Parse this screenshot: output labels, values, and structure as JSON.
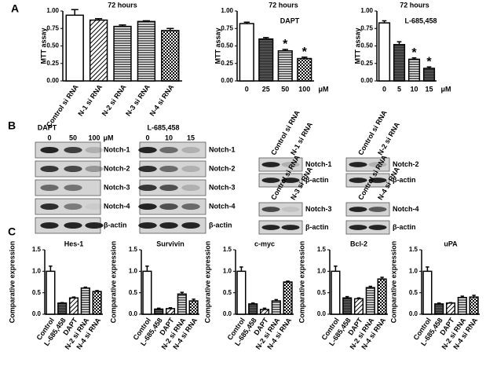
{
  "panels": [
    "A",
    "B",
    "C"
  ],
  "chart_data": [
    {
      "type": "bar",
      "title": "72 hours",
      "ylabel": "MTT assay",
      "categories": [
        "Control si RNA",
        "N-1 si RNA",
        "N-2 si RNA",
        "N-3 si RNA",
        "N-4 si RNA"
      ],
      "values": [
        0.94,
        0.87,
        0.78,
        0.85,
        0.72
      ],
      "errors": [
        0.08,
        0.02,
        0.02,
        0.01,
        0.03
      ],
      "color": "#000000",
      "fills": [
        "white",
        "diagonal",
        "hlines",
        "hlines",
        "checker"
      ],
      "ylim": [
        0,
        1
      ],
      "yticks": [
        {
          "value": 0,
          "label": "0.00"
        },
        {
          "value": 0.25,
          "label": "0.25"
        },
        {
          "value": 0.5,
          "label": "0.50"
        },
        {
          "value": 0.75,
          "label": "0.75"
        },
        {
          "value": 1,
          "label": "1.00"
        }
      ]
    },
    {
      "type": "bar",
      "title": "72 hours",
      "subtitle": "DAPT",
      "ylabel": "MTT assay",
      "xlabel": "μM",
      "categories": [
        "0",
        "25",
        "50",
        "100"
      ],
      "values": [
        0.82,
        0.6,
        0.43,
        0.32
      ],
      "errors": [
        0.02,
        0.02,
        0.02,
        0.02
      ],
      "color": "#000000",
      "fills": [
        "white",
        "dense",
        "hlines",
        "checker"
      ],
      "annotations": [
        {
          "category": "50",
          "text": "*"
        },
        {
          "category": "100",
          "text": "*"
        }
      ],
      "ylim": [
        0,
        1
      ],
      "yticks": [
        {
          "value": 0,
          "label": "0.00"
        },
        {
          "value": 0.25,
          "label": "0.25"
        },
        {
          "value": 0.5,
          "label": "0.50"
        },
        {
          "value": 0.75,
          "label": "0.75"
        },
        {
          "value": 1,
          "label": "1.00"
        }
      ]
    },
    {
      "type": "bar",
      "title": "72 hours",
      "subtitle": "L-685,458",
      "ylabel": "MTT assay",
      "xlabel": "μM",
      "categories": [
        "0",
        "5",
        "10",
        "15"
      ],
      "values": [
        0.83,
        0.52,
        0.31,
        0.18
      ],
      "errors": [
        0.03,
        0.04,
        0.02,
        0.02
      ],
      "color": "#000000",
      "fills": [
        "white",
        "dense",
        "hlines",
        "dense"
      ],
      "annotations": [
        {
          "category": "10",
          "text": "*"
        },
        {
          "category": "15",
          "text": "*"
        }
      ],
      "ylim": [
        0,
        1
      ],
      "yticks": [
        {
          "value": 0,
          "label": "0.00"
        },
        {
          "value": 0.25,
          "label": "0.25"
        },
        {
          "value": 0.5,
          "label": "0.50"
        },
        {
          "value": 0.75,
          "label": "0.75"
        },
        {
          "value": 1,
          "label": "1.00"
        }
      ]
    },
    {
      "type": "bar",
      "title": "Hes-1",
      "ylabel": "Comparative expression",
      "categories": [
        "Control",
        "L-685,458",
        "DAPT",
        "N-2 si RNA",
        "N-4 si RNA"
      ],
      "values": [
        1.0,
        0.26,
        0.38,
        0.61,
        0.53
      ],
      "errors": [
        0.12,
        0.01,
        0.02,
        0.02,
        0.02
      ],
      "color": "#000000",
      "fills": [
        "white",
        "dense",
        "diagonal",
        "hlines",
        "checker"
      ],
      "ylim": [
        0,
        1.5
      ],
      "yticks": [
        {
          "value": 0,
          "label": "0.0"
        },
        0.5,
        {
          "value": 1,
          "label": "1.0"
        },
        1.5
      ]
    },
    {
      "type": "bar",
      "title": "Survivin",
      "ylabel": "Comparative expression",
      "categories": [
        "Control",
        "L-685,458",
        "DAPT",
        "N-2 si RNA",
        "N-4 si RNA"
      ],
      "values": [
        1.0,
        0.12,
        0.13,
        0.47,
        0.31
      ],
      "errors": [
        0.12,
        0.02,
        0.02,
        0.04,
        0.04
      ],
      "color": "#000000",
      "fills": [
        "white",
        "dense",
        "diagonal",
        "hlines",
        "checker"
      ],
      "ylim": [
        0,
        1.5
      ],
      "yticks": [
        {
          "value": 0,
          "label": "0.0"
        },
        0.5,
        {
          "value": 1,
          "label": "1.0"
        },
        1.5
      ]
    },
    {
      "type": "bar",
      "title": "c-myc",
      "ylabel": "Comparative expression",
      "categories": [
        "Control",
        "L-685,458",
        "DAPT",
        "N-2 si RNA",
        "N-4 si RNA"
      ],
      "values": [
        1.0,
        0.24,
        0.11,
        0.31,
        0.75
      ],
      "errors": [
        0.1,
        0.02,
        0.03,
        0.03,
        0.02
      ],
      "color": "#000000",
      "fills": [
        "white",
        "dense",
        "diagonal",
        "hlines",
        "checker"
      ],
      "ylim": [
        0,
        1.5
      ],
      "yticks": [
        {
          "value": 0,
          "label": "0.0"
        },
        0.5,
        {
          "value": 1,
          "label": "1.0"
        },
        1.5
      ]
    },
    {
      "type": "bar",
      "title": "Bcl-2",
      "ylabel": "Comparative expression",
      "categories": [
        "Control",
        "L-685,458",
        "DAPT",
        "N-2 si RNA",
        "N-4 si RNA"
      ],
      "values": [
        1.0,
        0.38,
        0.36,
        0.62,
        0.82
      ],
      "errors": [
        0.12,
        0.03,
        0.02,
        0.03,
        0.04
      ],
      "color": "#000000",
      "fills": [
        "white",
        "dense",
        "diagonal",
        "hlines",
        "checker"
      ],
      "ylim": [
        0,
        1.5
      ],
      "yticks": [
        {
          "value": 0,
          "label": "0.0"
        },
        0.5,
        {
          "value": 1,
          "label": "1.0"
        },
        1.5
      ]
    },
    {
      "type": "bar",
      "title": "uPA",
      "ylabel": "Comparative expression",
      "categories": [
        "Control",
        "L-685,458",
        "DAPT",
        "N-2 si RNA",
        "N-4 si RNA"
      ],
      "values": [
        1.0,
        0.24,
        0.26,
        0.39,
        0.4
      ],
      "errors": [
        0.1,
        0.02,
        0.01,
        0.03,
        0.04
      ],
      "color": "#000000",
      "fills": [
        "white",
        "dense",
        "diagonal",
        "hlines",
        "checker"
      ],
      "ylim": [
        0,
        1.5
      ],
      "yticks": [
        {
          "value": 0,
          "label": "0.0"
        },
        0.5,
        {
          "value": 1,
          "label": "1.0"
        },
        1.5
      ]
    }
  ],
  "blots": [
    {
      "title": "DAPT",
      "lanes": [
        "0",
        "50",
        "100"
      ],
      "unit": "μM",
      "rows": [
        "Notch-1",
        "Notch-2",
        "Notch-3",
        "Notch-4",
        "β-actin"
      ]
    },
    {
      "title": "L-685,458",
      "lanes": [
        "0",
        "10",
        "15"
      ],
      "rows": [
        "Notch-1",
        "Notch-2",
        "Notch-3",
        "Notch-4",
        "β-actin"
      ]
    },
    {
      "lanes": [
        "Control si RNA",
        "N-1 si RNA"
      ],
      "rows": [
        "Notch-1",
        "β-actin"
      ]
    },
    {
      "lanes": [
        "Control si RNA",
        "N-2 si RNA"
      ],
      "rows": [
        "Notch-2",
        "β-actin"
      ]
    },
    {
      "lanes": [
        "Control si RNA",
        "N-3 si RNA"
      ],
      "rows": [
        "Notch-3",
        "β-actin"
      ]
    },
    {
      "lanes": [
        "Control si RNA",
        "N-4 si RNA"
      ],
      "rows": [
        "Notch-4",
        "β-actin"
      ]
    }
  ]
}
